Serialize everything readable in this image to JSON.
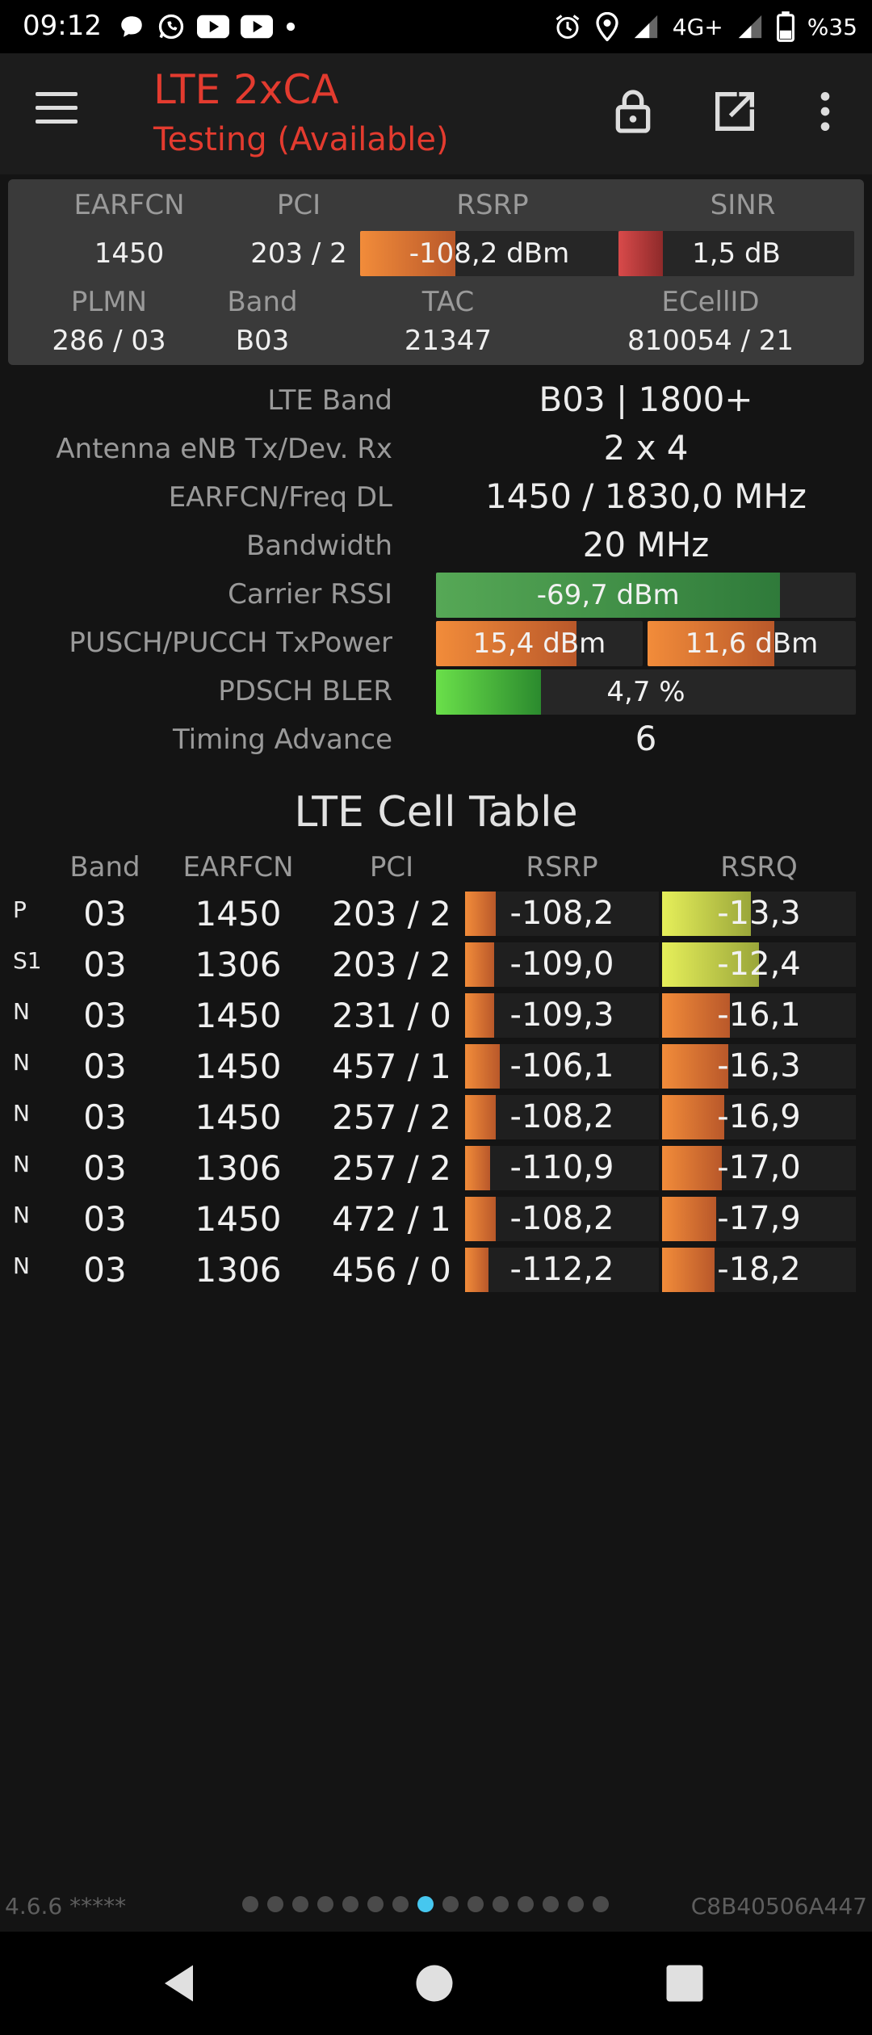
{
  "status_bar": {
    "time": "09:12",
    "network": "4G+",
    "battery": "%35",
    "left_icons": [
      "chat-bubble-icon",
      "whatsapp-icon",
      "youtube-icon",
      "youtube-icon",
      "dot-icon"
    ],
    "right_icons": [
      "alarm-icon",
      "location-icon",
      "signal-icon",
      "signal-icon",
      "battery-icon"
    ]
  },
  "app_bar": {
    "title": "LTE 2xCA",
    "subtitle": "Testing (Available)",
    "accent_color": "#e33b2f"
  },
  "summary": {
    "labels": {
      "earfcn": "EARFCN",
      "pci": "PCI",
      "rsrp": "RSRP",
      "sinr": "SINR",
      "plmn": "PLMN",
      "band": "Band",
      "tac": "TAC",
      "ecellid": "ECellID"
    },
    "earfcn": "1450",
    "pci": "203 / 2",
    "rsrp": "-108,2 dBm",
    "rsrp_level": 0.37,
    "sinr": "1,5 dB",
    "sinr_level": 0.19,
    "plmn": "286 / 03",
    "band": "B03",
    "tac": "21347",
    "ecellid": "810054 / 21"
  },
  "details": {
    "lte_band_label": "LTE Band",
    "lte_band": "B03 | 1800+",
    "antenna_label": "Antenna eNB Tx/Dev. Rx",
    "antenna": "2 x 4",
    "earfcn_freq_label": "EARFCN/Freq DL",
    "earfcn_freq": "1450 / 1830,0 MHz",
    "bandwidth_label": "Bandwidth",
    "bandwidth": "20 MHz",
    "carrier_rssi_label": "Carrier RSSI",
    "carrier_rssi": "-69,7 dBm",
    "carrier_rssi_level": 0.82,
    "txpower_label": "PUSCH/PUCCH TxPower",
    "pusch": "15,4 dBm",
    "pusch_level": 0.68,
    "pucch": "11,6 dBm",
    "pucch_level": 0.61,
    "bler_label": "PDSCH BLER",
    "bler": "4,7 %",
    "bler_level": 0.25,
    "ta_label": "Timing Advance",
    "ta": "6"
  },
  "cell_table": {
    "title": "LTE Cell Table",
    "headers": {
      "band": "Band",
      "earfcn": "EARFCN",
      "pci": "PCI",
      "rsrp": "RSRP",
      "rsrq": "RSRQ"
    },
    "rows": [
      {
        "type": "P",
        "band": "03",
        "earfcn": "1450",
        "pci": "203 / 2",
        "rsrp": "-108,2",
        "rsrp_level": 0.16,
        "rsrq": "-13,3",
        "rsrq_level": 0.46,
        "rsrq_color": "yellow"
      },
      {
        "type": "S1",
        "band": "03",
        "earfcn": "1306",
        "pci": "203 / 2",
        "rsrp": "-109,0",
        "rsrp_level": 0.15,
        "rsrq": "-12,4",
        "rsrq_level": 0.5,
        "rsrq_color": "yellow"
      },
      {
        "type": "N",
        "band": "03",
        "earfcn": "1450",
        "pci": "231 / 0",
        "rsrp": "-109,3",
        "rsrp_level": 0.15,
        "rsrq": "-16,1",
        "rsrq_level": 0.35,
        "rsrq_color": "orange"
      },
      {
        "type": "N",
        "band": "03",
        "earfcn": "1450",
        "pci": "457 / 1",
        "rsrp": "-106,1",
        "rsrp_level": 0.18,
        "rsrq": "-16,3",
        "rsrq_level": 0.34,
        "rsrq_color": "orange"
      },
      {
        "type": "N",
        "band": "03",
        "earfcn": "1450",
        "pci": "257 / 2",
        "rsrp": "-108,2",
        "rsrp_level": 0.16,
        "rsrq": "-16,9",
        "rsrq_level": 0.32,
        "rsrq_color": "orange"
      },
      {
        "type": "N",
        "band": "03",
        "earfcn": "1306",
        "pci": "257 / 2",
        "rsrp": "-110,9",
        "rsrp_level": 0.13,
        "rsrq": "-17,0",
        "rsrq_level": 0.31,
        "rsrq_color": "orange"
      },
      {
        "type": "N",
        "band": "03",
        "earfcn": "1450",
        "pci": "472 / 1",
        "rsrp": "-108,2",
        "rsrp_level": 0.16,
        "rsrq": "-17,9",
        "rsrq_level": 0.28,
        "rsrq_color": "orange"
      },
      {
        "type": "N",
        "band": "03",
        "earfcn": "1306",
        "pci": "456 / 0",
        "rsrp": "-112,2",
        "rsrp_level": 0.12,
        "rsrq": "-18,2",
        "rsrq_level": 0.27,
        "rsrq_color": "orange"
      }
    ]
  },
  "footer": {
    "version": "4.6.6 *****",
    "device_id": "C8B40506A447",
    "page_count": 15,
    "active_page": 8
  }
}
